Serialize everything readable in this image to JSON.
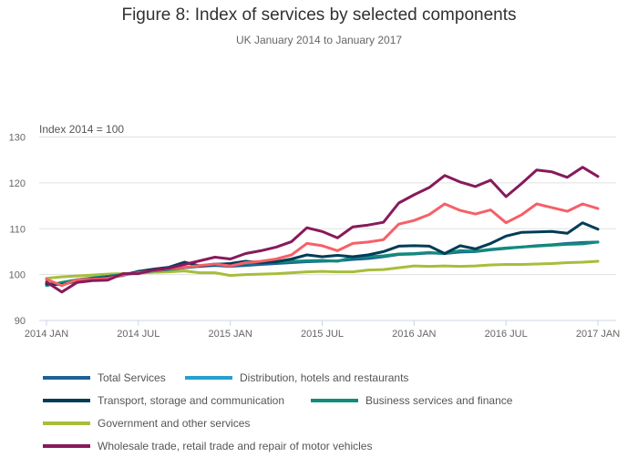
{
  "chart_data": {
    "type": "line",
    "title": "Figure 8: Index of services by selected components",
    "subtitle": "UK January 2014 to January 2017",
    "ylabel": "Index 2014 = 100",
    "xlabel": "",
    "ylim": [
      90,
      130
    ],
    "yticks": [
      90,
      100,
      110,
      120,
      130
    ],
    "xtick_labels": [
      "2014 JAN",
      "2014 JUL",
      "2015 JAN",
      "2015 JUL",
      "2016 JAN",
      "2016 JUL",
      "2017 JAN"
    ],
    "xtick_months": [
      0,
      6,
      12,
      18,
      24,
      30,
      36
    ],
    "grid": true,
    "legend_position": "bottom",
    "x": [
      "2014 JAN",
      "2014 FEB",
      "2014 MAR",
      "2014 APR",
      "2014 MAY",
      "2014 JUN",
      "2014 JUL",
      "2014 AUG",
      "2014 SEP",
      "2014 OCT",
      "2014 NOV",
      "2014 DEC",
      "2015 JAN",
      "2015 FEB",
      "2015 MAR",
      "2015 APR",
      "2015 MAY",
      "2015 JUN",
      "2015 JUL",
      "2015 AUG",
      "2015 SEP",
      "2015 OCT",
      "2015 NOV",
      "2015 DEC",
      "2016 JAN",
      "2016 FEB",
      "2016 MAR",
      "2016 APR",
      "2016 MAY",
      "2016 JUN",
      "2016 JUL",
      "2016 AUG",
      "2016 SEP",
      "2016 OCT",
      "2016 NOV",
      "2016 DEC",
      "2017 JAN"
    ],
    "series": [
      {
        "name": "Total Services",
        "color": "#206095",
        "values": [
          97.8,
          97.9,
          98.8,
          99.2,
          99.6,
          100.0,
          100.6,
          100.9,
          101.2,
          101.5,
          101.8,
          102.0,
          101.8,
          102.0,
          102.2,
          102.4,
          102.6,
          102.8,
          102.9,
          103.0,
          103.3,
          103.5,
          103.9,
          104.4,
          104.5,
          104.7,
          104.6,
          104.9,
          105.0,
          105.4,
          105.7,
          106.0,
          106.3,
          106.5,
          106.8,
          107.0,
          107.1
        ]
      },
      {
        "name": "Distribution, hotels and restaurants",
        "color": "#27a0cc",
        "values": [
          99.0,
          97.6,
          98.9,
          99.0,
          99.2,
          99.9,
          100.4,
          100.9,
          101.3,
          101.6,
          102.0,
          102.3,
          101.9,
          102.6,
          102.9,
          103.4,
          104.3,
          106.8,
          106.3,
          105.2,
          106.8,
          107.1,
          107.6,
          111.0,
          111.8,
          113.1,
          115.4,
          114.0,
          113.2,
          114.1,
          111.3,
          113.0,
          115.4,
          114.6,
          113.8,
          115.4,
          114.4
        ]
      },
      {
        "name": "Transport, storage and communication",
        "color": "#003c57",
        "values": [
          98.0,
          97.8,
          98.6,
          99.1,
          99.4,
          99.8,
          100.7,
          101.2,
          101.6,
          102.7,
          101.9,
          102.2,
          102.4,
          102.9,
          102.6,
          102.8,
          103.4,
          104.3,
          103.9,
          104.2,
          103.9,
          104.3,
          105.0,
          106.2,
          106.3,
          106.2,
          104.6,
          106.3,
          105.6,
          106.8,
          108.4,
          109.2,
          109.3,
          109.4,
          109.0,
          111.3,
          109.9
        ]
      },
      {
        "name": "Business services and finance",
        "color": "#118c7b",
        "values": [
          97.6,
          98.3,
          98.9,
          99.3,
          99.6,
          100.0,
          100.4,
          100.8,
          101.1,
          101.5,
          101.9,
          102.3,
          102.2,
          102.5,
          102.6,
          102.8,
          102.9,
          103.0,
          103.1,
          102.9,
          103.8,
          103.9,
          104.1,
          104.5,
          104.6,
          104.8,
          104.6,
          105.2,
          105.1,
          105.5,
          105.8,
          106.0,
          106.2,
          106.4,
          106.6,
          106.7,
          107.1
        ]
      },
      {
        "name": "Government and other services",
        "color": "#a8bd3a",
        "values": [
          99.2,
          99.5,
          99.7,
          99.9,
          100.1,
          100.2,
          100.3,
          100.5,
          100.6,
          100.8,
          100.4,
          100.4,
          99.8,
          100.0,
          100.1,
          100.2,
          100.4,
          100.6,
          100.7,
          100.6,
          100.6,
          101.0,
          101.1,
          101.5,
          101.9,
          101.8,
          101.9,
          101.8,
          101.9,
          102.1,
          102.2,
          102.2,
          102.3,
          102.4,
          102.6,
          102.7,
          102.9
        ]
      },
      {
        "name": "Wholesale trade, retail trade and repair of motor vehicles",
        "color": "#871a5b",
        "values": [
          98.4,
          96.2,
          98.3,
          98.7,
          98.8,
          100.2,
          100.2,
          101.0,
          101.4,
          102.2,
          103.0,
          103.8,
          103.4,
          104.6,
          105.2,
          106.0,
          107.2,
          110.2,
          109.4,
          108.0,
          110.4,
          110.8,
          111.4,
          115.6,
          117.4,
          119.0,
          121.6,
          120.2,
          119.2,
          120.6,
          117.0,
          119.8,
          122.8,
          122.4,
          121.2,
          123.4,
          121.4
        ]
      }
    ],
    "chart_line_colors_rendered": {
      "Distribution, hotels and restaurants": "#f66068"
    }
  },
  "legend": {
    "items": [
      {
        "label": "Total Services",
        "color": "#206095"
      },
      {
        "label": "Distribution, hotels and restaurants",
        "color": "#27a0cc"
      },
      {
        "label": "Transport, storage and communication",
        "color": "#003c57"
      },
      {
        "label": "Business services and finance",
        "color": "#118c7b"
      },
      {
        "label": "Government and other services",
        "color": "#a8bd3a"
      },
      {
        "label": "Wholesale trade, retail trade and repair of motor vehicles",
        "color": "#871a5b"
      }
    ]
  }
}
